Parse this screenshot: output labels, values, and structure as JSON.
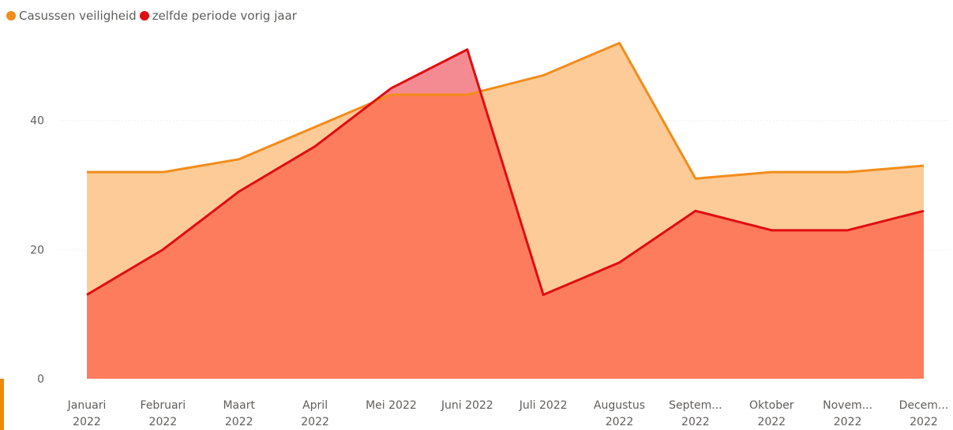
{
  "colors": {
    "series_a": "#f28c1b",
    "series_a_fill": "#fccb98",
    "series_b": "#e00d11",
    "series_b_fill": "#fd7c5d",
    "series_b_fill_above": "#f58b92",
    "grid": "#e1e1e1",
    "accent": "#ef8a00"
  },
  "chart_data": {
    "type": "area",
    "categories": [
      [
        "Januari",
        "2022"
      ],
      [
        "Februari",
        "2022"
      ],
      [
        "Maart",
        "2022"
      ],
      [
        "April",
        "2022"
      ],
      [
        "Mei 2022"
      ],
      [
        "Juni 2022"
      ],
      [
        "Juli 2022"
      ],
      [
        "Augustus",
        "2022"
      ],
      [
        "Septem...",
        "2022"
      ],
      [
        "Oktober",
        "2022"
      ],
      [
        "Novem...",
        "2022"
      ],
      [
        "Decem...",
        "2022"
      ]
    ],
    "series": [
      {
        "name": "Casussen veiligheid",
        "values": [
          32,
          32,
          34,
          39,
          44,
          44,
          47,
          52,
          31,
          32,
          32,
          33
        ]
      },
      {
        "name": "zelfde periode vorig jaar",
        "values": [
          13,
          20,
          29,
          36,
          45,
          51,
          13,
          18,
          26,
          23,
          23,
          26
        ]
      }
    ],
    "yticks": [
      "0",
      "20",
      "40"
    ],
    "ylim": [
      0,
      55
    ],
    "grid": true,
    "legend_position": "top-left"
  }
}
